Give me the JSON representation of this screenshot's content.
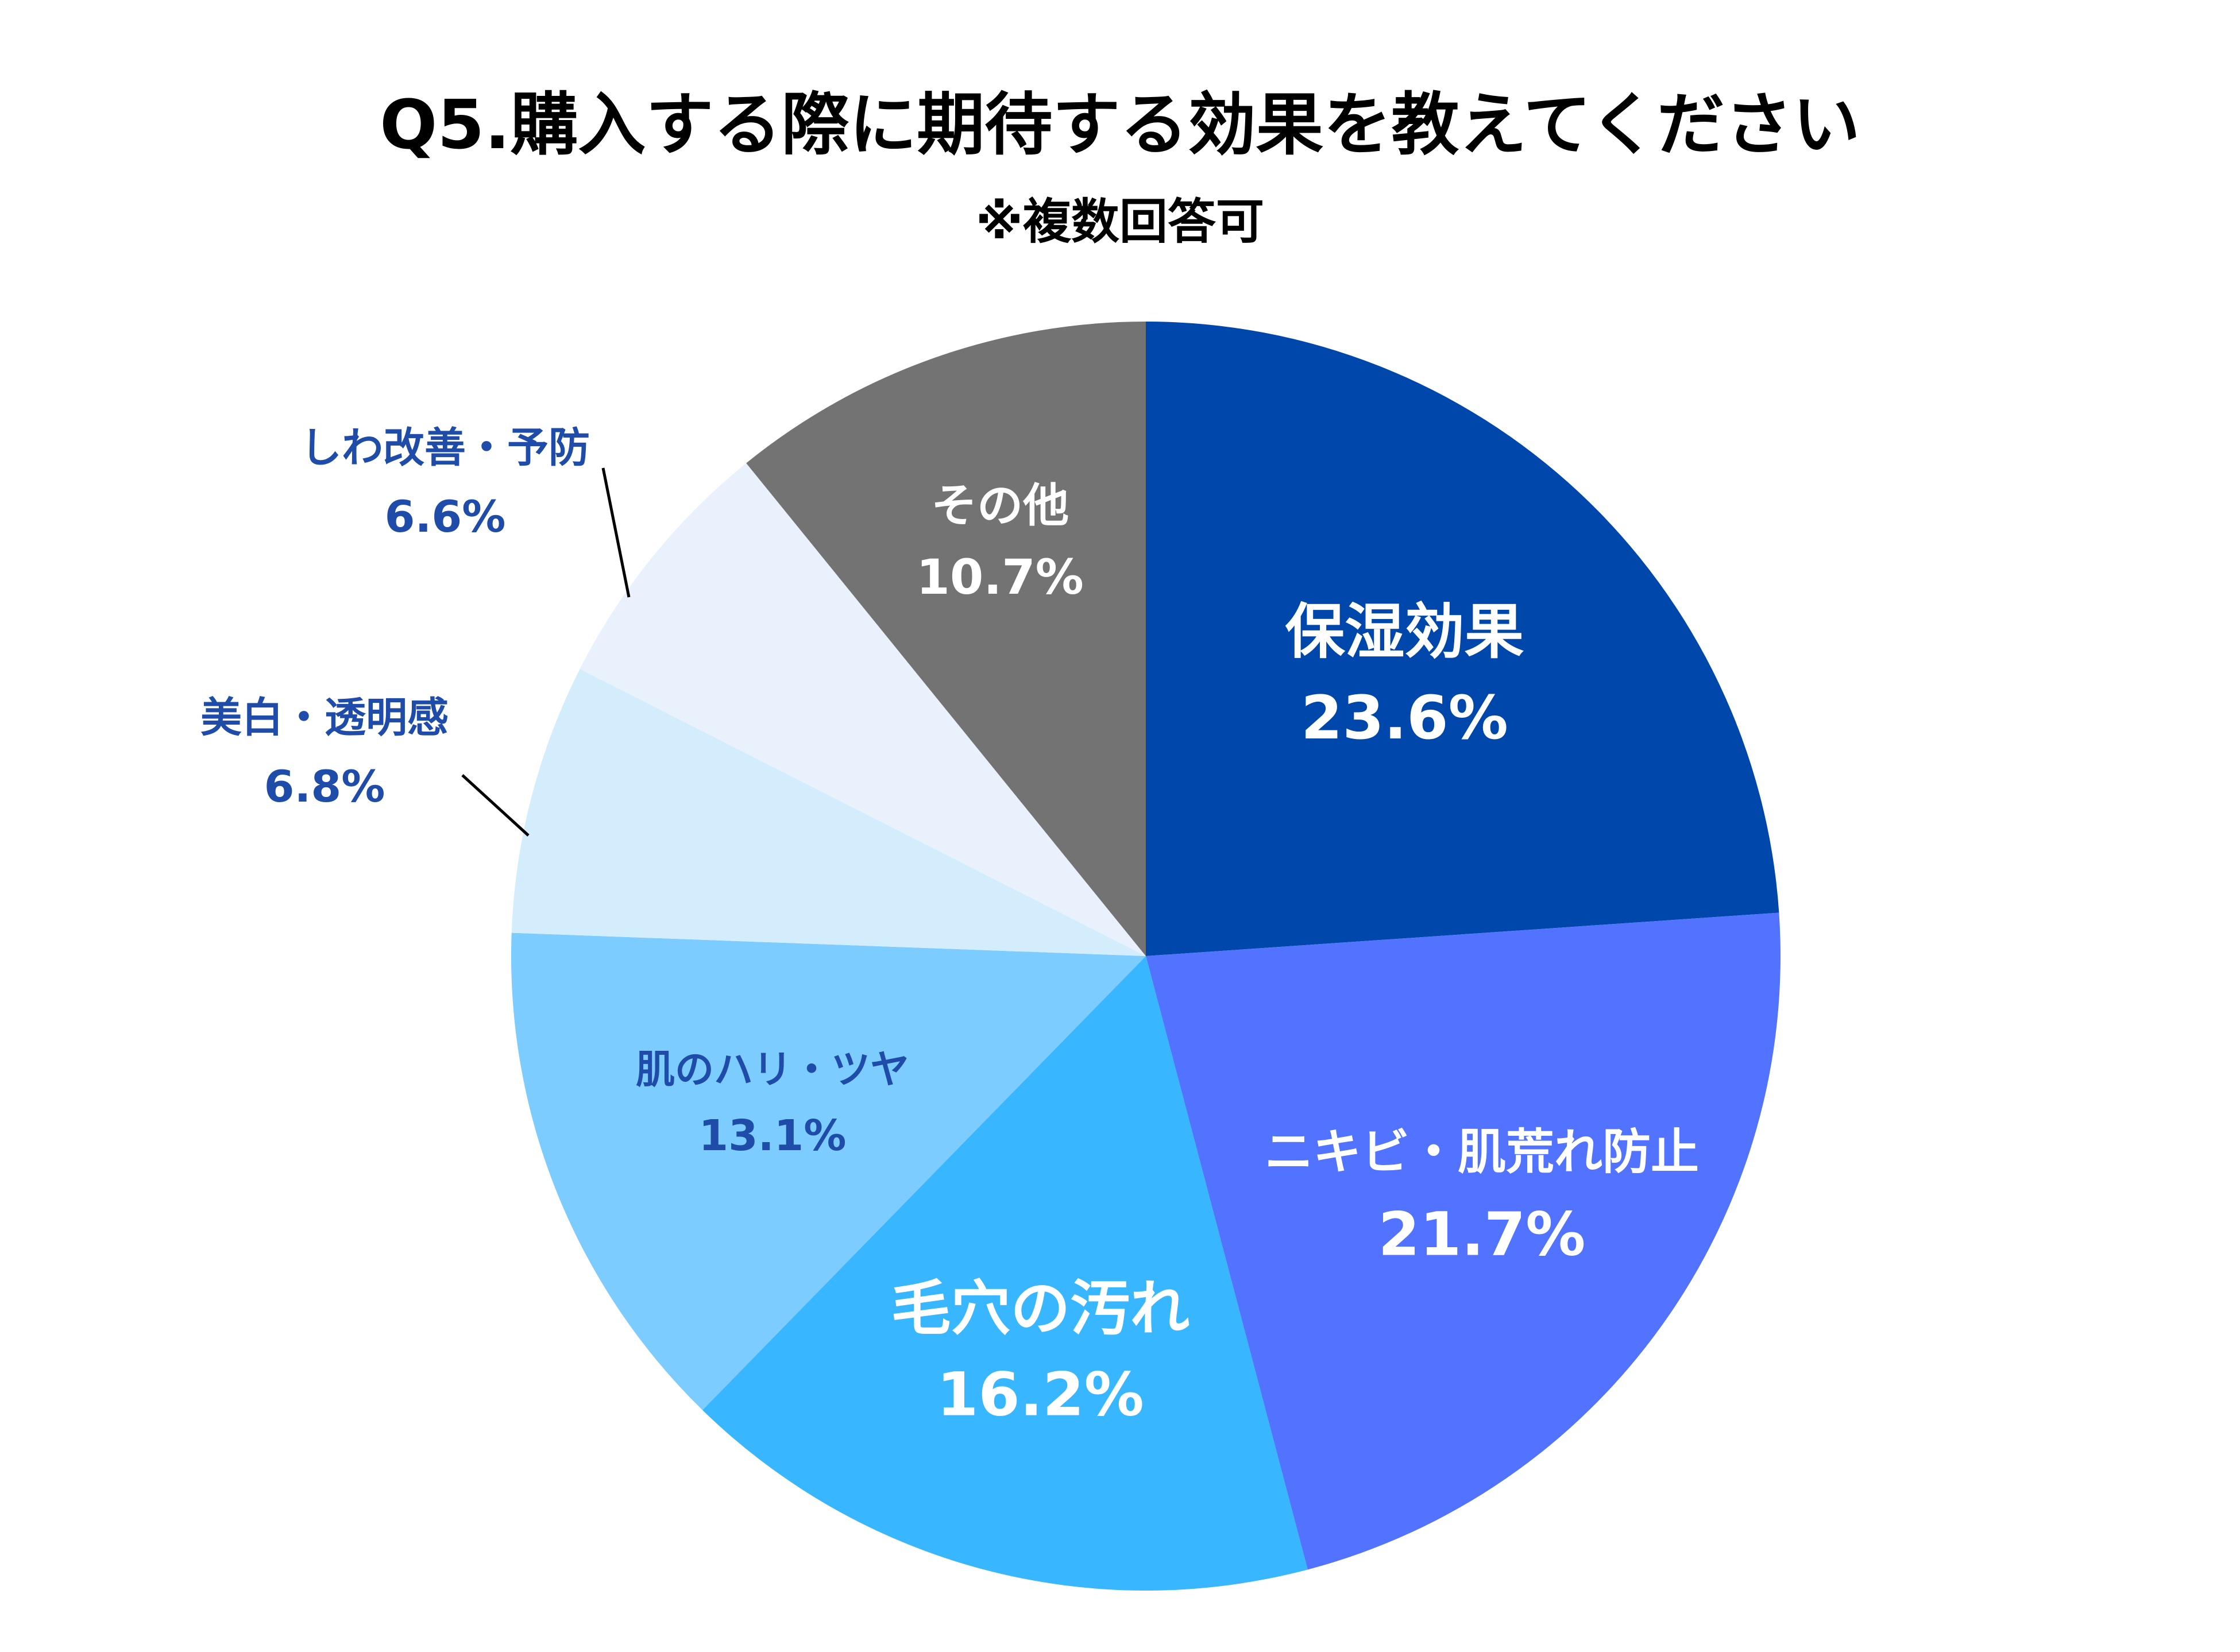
{
  "chart_data": {
    "type": "pie",
    "title": "Q5.購入する際に期待する効果を教えてください",
    "subtitle": "※複数回答可",
    "slices": [
      {
        "label": "保湿効果",
        "value": 23.6,
        "value_text": "23.6%",
        "color": "#0047AB",
        "label_color": "#FFFFFF"
      },
      {
        "label": "ニキビ・肌荒れ防止",
        "value": 21.7,
        "value_text": "21.7%",
        "color": "#5173FF",
        "label_color": "#FFFFFF"
      },
      {
        "label": "毛穴の汚れ",
        "value": 16.2,
        "value_text": "16.2%",
        "color": "#38B6FF",
        "label_color": "#FFFFFF"
      },
      {
        "label": "肌のハリ・ツヤ",
        "value": 13.1,
        "value_text": "13.1%",
        "color": "#7CCCFF",
        "label_color": "#1E4CA8"
      },
      {
        "label": "美白・透明感",
        "value": 6.8,
        "value_text": "6.8%",
        "color": "#D4EDFD",
        "label_color": "#1E4CA8"
      },
      {
        "label": "しわ改善・予防",
        "value": 6.6,
        "value_text": "6.6%",
        "color": "#E9F1FC",
        "label_color": "#1E4CA8"
      },
      {
        "label": "その他",
        "value": 10.7,
        "value_text": "10.7%",
        "color": "#737373",
        "label_color": "#FFFFFF"
      }
    ]
  }
}
